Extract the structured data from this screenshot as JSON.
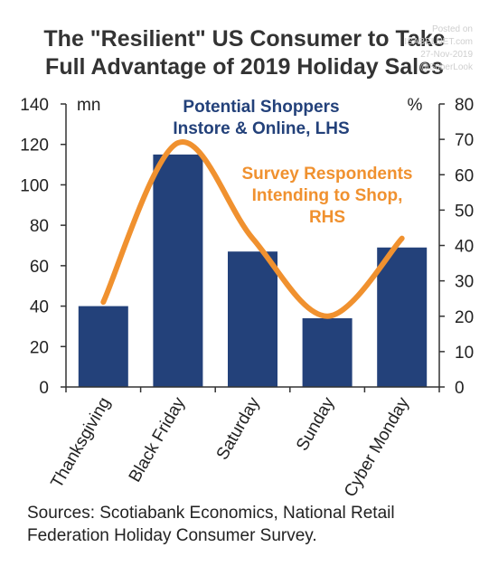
{
  "header": {
    "title_line1": "The \"Resilient\" US Consumer to Take",
    "title_line2": "Full Advantage of 2019 Holiday Sales"
  },
  "watermark": {
    "line1": "Posted on",
    "line2": "ISABELNET.com",
    "line3": "27-Nov-2019",
    "line4": "@SoberLook"
  },
  "footer": {
    "source_line1": "Sources: Scotiabank Economics, National Retail",
    "source_line2": "Federation Holiday Consumer Survey."
  },
  "colors": {
    "bar": "#23417a",
    "line": "#f0912f",
    "axis": "#333333"
  },
  "chart_data": {
    "type": "bar",
    "categories": [
      "Thanksgiving",
      "Black Friday",
      "Saturday",
      "Sunday",
      "Cyber Monday"
    ],
    "left_axis": {
      "unit": "mn",
      "min": 0,
      "max": 140,
      "ticks": [
        0,
        20,
        40,
        60,
        80,
        100,
        120,
        140
      ]
    },
    "right_axis": {
      "unit": "%",
      "min": 0,
      "max": 80,
      "ticks": [
        0,
        10,
        20,
        30,
        40,
        50,
        60,
        70,
        80
      ]
    },
    "series": [
      {
        "name": "Potential Shoppers Instore & Online, LHS",
        "chart": "bar",
        "axis": "left",
        "values": [
          40,
          115,
          67,
          34,
          69
        ]
      },
      {
        "name": "Survey Respondents Intending to Shop, RHS",
        "chart": "line",
        "axis": "right",
        "values": [
          24,
          69,
          42,
          20,
          42
        ]
      }
    ],
    "annotations": {
      "bars_label": [
        "Potential Shoppers",
        "Instore & Online, LHS"
      ],
      "line_label": [
        "Survey Respondents",
        "Intending to Shop,",
        "RHS"
      ]
    },
    "grid": false,
    "legend": "none"
  }
}
